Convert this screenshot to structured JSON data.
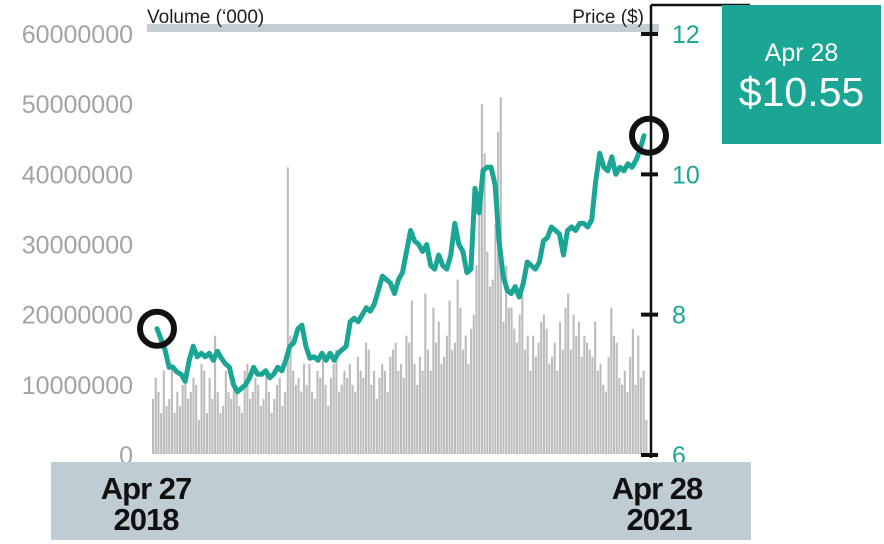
{
  "chart_data": {
    "type": "bar+line",
    "volume_axis": {
      "title": "Volume (‘000)",
      "ticks": [
        "60000000",
        "50000000",
        "40000000",
        "30000000",
        "20000000",
        "10000000",
        "0"
      ],
      "ylim": [
        0,
        60000000
      ]
    },
    "price_axis": {
      "title": "Price ($)",
      "ticks": [
        "12",
        "10",
        "8",
        "6"
      ],
      "ylim": [
        6,
        12
      ]
    },
    "x_labels": [
      {
        "month_day": "Apr 27",
        "year": "2018"
      },
      {
        "month_day": "Apr 28",
        "year": "2021"
      }
    ],
    "x_range": [
      "2018-04-27",
      "2021-04-28"
    ],
    "callout": {
      "date": "Apr 28",
      "price": "$10.55"
    },
    "series": [
      {
        "type": "bar",
        "unit": "shares",
        "note": "weekly trading volume, read approximately from the bars",
        "values": [
          8,
          11,
          9,
          6,
          12,
          7,
          8,
          13,
          6,
          9,
          7,
          10,
          12,
          8,
          9,
          11,
          10,
          5,
          13,
          12,
          6,
          11,
          8,
          17,
          9,
          6,
          7,
          12,
          9,
          8,
          11,
          10,
          7,
          6,
          12,
          13,
          8,
          9,
          11,
          10,
          7,
          8,
          12,
          9,
          6,
          8,
          10,
          11,
          7,
          9,
          41,
          17,
          12,
          10,
          11,
          9,
          13,
          10,
          13,
          9,
          8,
          12,
          11,
          14,
          10,
          7,
          11,
          13,
          15,
          9,
          10,
          12,
          11,
          13,
          10,
          9,
          14,
          12,
          11,
          16,
          15,
          10,
          12,
          8,
          11,
          13,
          12,
          9,
          14,
          15,
          16,
          12,
          13,
          11,
          17,
          16,
          22,
          13,
          10,
          14,
          12,
          23,
          15,
          12,
          21,
          16,
          19,
          13,
          14,
          17,
          22,
          15,
          16,
          25,
          21,
          15,
          17,
          13,
          18,
          20,
          27,
          35,
          50,
          43,
          29,
          24,
          25,
          33,
          46,
          51,
          19,
          27,
          21,
          21,
          18,
          16,
          20,
          23,
          15,
          17,
          12,
          17,
          14,
          16,
          19,
          20,
          18,
          13,
          14,
          16,
          12,
          19,
          15,
          21,
          23,
          15,
          20,
          17,
          19,
          14,
          17,
          16,
          15,
          14,
          19,
          12,
          13,
          10,
          9,
          14,
          21,
          17,
          16,
          11,
          10,
          12,
          9,
          14,
          18,
          10,
          17,
          11,
          12,
          5
        ]
      },
      {
        "type": "line",
        "unit": "USD",
        "note": "share price, read approximately from the line",
        "values": [
          7.8,
          7.65,
          7.5,
          7.25,
          7.25,
          7.18,
          7.15,
          7.05,
          7.35,
          7.55,
          7.4,
          7.45,
          7.4,
          7.45,
          7.35,
          7.48,
          7.38,
          7.3,
          7.25,
          7.0,
          6.9,
          6.95,
          7.0,
          7.1,
          7.25,
          7.15,
          7.15,
          7.2,
          7.1,
          7.15,
          7.25,
          7.2,
          7.35,
          7.55,
          7.6,
          7.8,
          7.85,
          7.55,
          7.38,
          7.4,
          7.35,
          7.45,
          7.35,
          7.45,
          7.35,
          7.45,
          7.5,
          7.55,
          7.9,
          7.95,
          7.9,
          8.0,
          8.1,
          8.05,
          8.15,
          8.35,
          8.55,
          8.5,
          8.45,
          8.3,
          8.5,
          8.6,
          8.9,
          9.2,
          9.05,
          9.0,
          8.9,
          9.0,
          8.7,
          8.65,
          8.85,
          8.7,
          8.65,
          8.85,
          9.3,
          9.0,
          8.9,
          8.6,
          8.65,
          9.8,
          9.45,
          10.05,
          10.1,
          10.1,
          9.85,
          9.05,
          8.55,
          8.35,
          8.3,
          8.4,
          8.25,
          8.45,
          8.75,
          8.7,
          8.65,
          8.75,
          9.05,
          9.1,
          9.25,
          9.2,
          9.15,
          8.85,
          9.2,
          9.25,
          9.2,
          9.3,
          9.3,
          9.25,
          9.35,
          9.9,
          10.3,
          10.1,
          10.05,
          10.25,
          10.0,
          10.1,
          10.05,
          10.15,
          10.1,
          10.2,
          10.35,
          10.55
        ]
      }
    ],
    "grid": false,
    "legend": "none"
  }
}
